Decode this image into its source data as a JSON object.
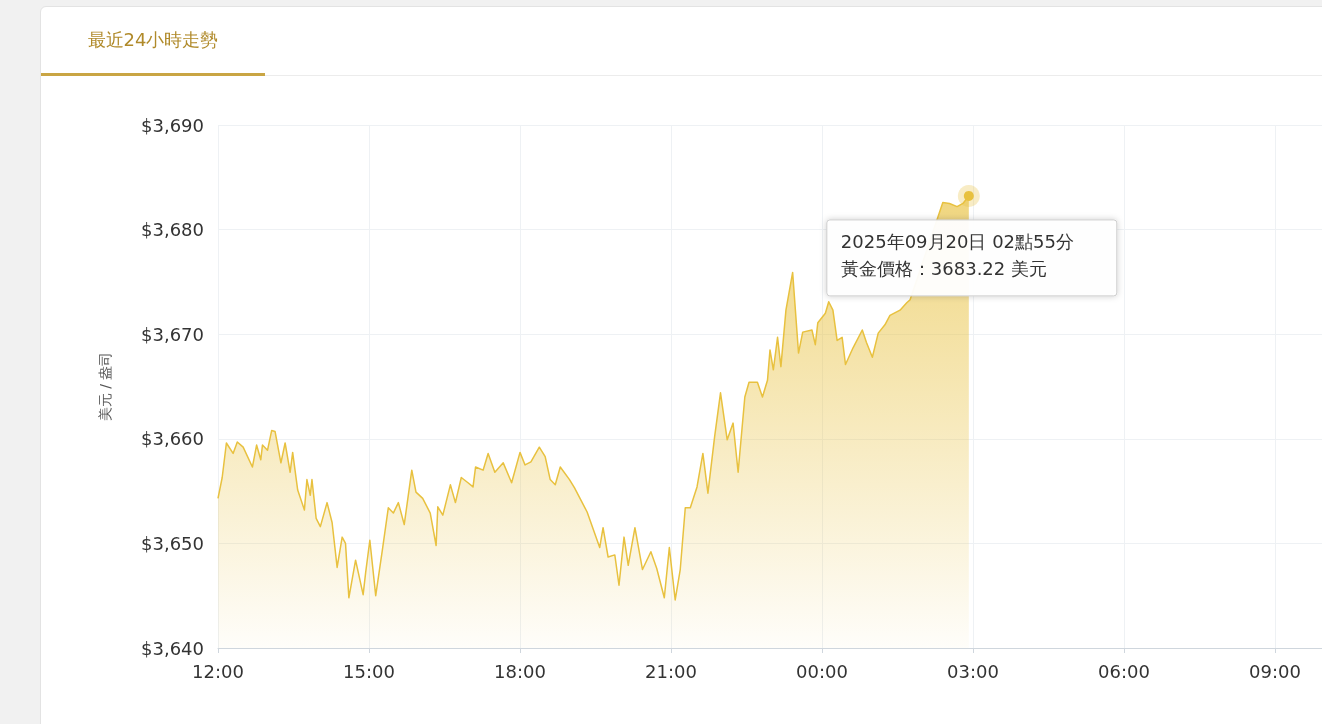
{
  "chart_data": {
    "type": "area",
    "title": "最近24小時走勢",
    "ylabel": "美元 / 盎司",
    "x": [
      "2025-09-19T12:00",
      "2025-09-19T12:05",
      "2025-09-19T12:10",
      "2025-09-19T12:18",
      "2025-09-19T12:23",
      "2025-09-19T12:30",
      "2025-09-19T12:41",
      "2025-09-19T12:46",
      "2025-09-19T12:51",
      "2025-09-19T12:53",
      "2025-09-19T12:59",
      "2025-09-19T13:04",
      "2025-09-19T13:08",
      "2025-09-19T13:15",
      "2025-09-19T13:20",
      "2025-09-19T13:26",
      "2025-09-19T13:29",
      "2025-09-19T13:35",
      "2025-09-19T13:43",
      "2025-09-19T13:46",
      "2025-09-19T13:50",
      "2025-09-19T13:52",
      "2025-09-19T13:57",
      "2025-09-19T14:02",
      "2025-09-19T14:10",
      "2025-09-19T14:16",
      "2025-09-19T14:22",
      "2025-09-19T14:28",
      "2025-09-19T14:32",
      "2025-09-19T14:36",
      "2025-09-19T14:44",
      "2025-09-19T14:53",
      "2025-09-19T14:56",
      "2025-09-19T15:01",
      "2025-09-19T15:08",
      "2025-09-19T15:16",
      "2025-09-19T15:23",
      "2025-09-19T15:29",
      "2025-09-19T15:35",
      "2025-09-19T15:42",
      "2025-09-19T15:51",
      "2025-09-19T15:56",
      "2025-09-19T16:04",
      "2025-09-19T16:13",
      "2025-09-19T16:20",
      "2025-09-19T16:22",
      "2025-09-19T16:28",
      "2025-09-19T16:37",
      "2025-09-19T16:43",
      "2025-09-19T16:50",
      "2025-09-19T16:58",
      "2025-09-19T17:04",
      "2025-09-19T17:07",
      "2025-09-19T17:16",
      "2025-09-19T17:22",
      "2025-09-19T17:30",
      "2025-09-19T17:40",
      "2025-09-19T17:50",
      "2025-09-19T18:00",
      "2025-09-19T18:06",
      "2025-09-19T18:13",
      "2025-09-19T18:23",
      "2025-09-19T18:30",
      "2025-09-19T18:36",
      "2025-09-19T18:42",
      "2025-09-19T18:48",
      "2025-09-19T18:59",
      "2025-09-19T19:05",
      "2025-09-19T19:20",
      "2025-09-19T19:35",
      "2025-09-19T19:39",
      "2025-09-19T19:45",
      "2025-09-19T19:53",
      "2025-09-19T19:58",
      "2025-09-19T20:04",
      "2025-09-19T20:09",
      "2025-09-19T20:17",
      "2025-09-19T20:26",
      "2025-09-19T20:36",
      "2025-09-19T20:43",
      "2025-09-19T20:52",
      "2025-09-19T20:58",
      "2025-09-19T21:05",
      "2025-09-19T21:11",
      "2025-09-19T21:17",
      "2025-09-19T21:23",
      "2025-09-19T21:31",
      "2025-09-19T21:38",
      "2025-09-19T21:44",
      "2025-09-19T21:52",
      "2025-09-19T21:59",
      "2025-09-19T22:07",
      "2025-09-19T22:14",
      "2025-09-19T22:20",
      "2025-09-19T22:28",
      "2025-09-19T22:33",
      "2025-09-19T22:43",
      "2025-09-19T22:49",
      "2025-09-19T22:55",
      "2025-09-19T22:58",
      "2025-09-19T23:02",
      "2025-09-19T23:07",
      "2025-09-19T23:11",
      "2025-09-19T23:17",
      "2025-09-19T23:25",
      "2025-09-19T23:32",
      "2025-09-19T23:37",
      "2025-09-19T23:48",
      "2025-09-19T23:52",
      "2025-09-19T23:55",
      "2025-09-20T00:04",
      "2025-09-20T00:08",
      "2025-09-20T00:13",
      "2025-09-20T00:18",
      "2025-09-20T00:24",
      "2025-09-20T00:28",
      "2025-09-20T00:37",
      "2025-09-20T00:48",
      "2025-09-20T00:53",
      "2025-09-20T01:00",
      "2025-09-20T01:07",
      "2025-09-20T01:15",
      "2025-09-20T01:21",
      "2025-09-20T01:33",
      "2025-09-20T01:41",
      "2025-09-20T01:45",
      "2025-09-20T02:24",
      "2025-09-20T02:32",
      "2025-09-20T02:41",
      "2025-09-20T02:48",
      "2025-09-20T02:55"
    ],
    "series": [
      {
        "color": "#e8c13f",
        "values": [
          3654.3,
          3656.3,
          3659.6,
          3658.6,
          3659.7,
          3659.2,
          3657.3,
          3659.4,
          3658.0,
          3659.4,
          3658.9,
          3660.8,
          3660.7,
          3657.7,
          3659.6,
          3656.8,
          3658.7,
          3655.1,
          3653.2,
          3656.1,
          3654.6,
          3656.1,
          3652.4,
          3651.6,
          3653.9,
          3652.0,
          3647.7,
          3650.6,
          3650.0,
          3644.8,
          3648.4,
          3645.1,
          3647.2,
          3650.3,
          3645.0,
          3649.4,
          3653.4,
          3652.9,
          3653.9,
          3651.8,
          3657.0,
          3654.9,
          3654.3,
          3652.9,
          3649.8,
          3653.5,
          3652.7,
          3655.6,
          3653.9,
          3656.3,
          3655.8,
          3655.4,
          3657.3,
          3657.0,
          3658.6,
          3656.8,
          3657.7,
          3655.8,
          3658.7,
          3657.5,
          3657.8,
          3659.2,
          3658.3,
          3656.1,
          3655.6,
          3657.3,
          3656.1,
          3655.3,
          3653.0,
          3649.6,
          3651.5,
          3648.7,
          3648.9,
          3646.0,
          3650.6,
          3647.9,
          3651.5,
          3647.5,
          3649.2,
          3647.6,
          3644.8,
          3649.6,
          3644.6,
          3647.5,
          3653.4,
          3653.4,
          3655.4,
          3658.6,
          3654.8,
          3660.2,
          3664.4,
          3659.9,
          3661.5,
          3656.8,
          3664.0,
          3665.4,
          3665.4,
          3664.0,
          3665.6,
          3668.5,
          3666.6,
          3669.7,
          3666.9,
          3672.3,
          3675.9,
          3668.2,
          3670.2,
          3670.4,
          3669.0,
          3671.1,
          3672.0,
          3673.1,
          3672.3,
          3669.4,
          3669.7,
          3667.1,
          3668.7,
          3670.4,
          3669.2,
          3667.8,
          3670.1,
          3670.9,
          3671.8,
          3672.3,
          3673.0,
          3673.3,
          3682.6,
          3682.5,
          3682.2,
          3682.5,
          3683.22
        ]
      }
    ],
    "xlim": [
      "2025-09-19T12:00",
      "2025-09-20T09:56"
    ],
    "xticks": [
      {
        "value": "2025-09-19T12:00",
        "label": "12:00"
      },
      {
        "value": "2025-09-19T15:00",
        "label": "15:00"
      },
      {
        "value": "2025-09-19T18:00",
        "label": "18:00"
      },
      {
        "value": "2025-09-19T21:00",
        "label": "21:00"
      },
      {
        "value": "2025-09-20T00:00",
        "label": "00:00"
      },
      {
        "value": "2025-09-20T03:00",
        "label": "03:00"
      },
      {
        "value": "2025-09-20T06:00",
        "label": "06:00"
      },
      {
        "value": "2025-09-20T09:00",
        "label": "09:00"
      }
    ],
    "ylim": [
      3640,
      3690
    ],
    "yticks": [
      {
        "value": 3640,
        "label": "$3,640"
      },
      {
        "value": 3650,
        "label": "$3,650"
      },
      {
        "value": 3660,
        "label": "$3,660"
      },
      {
        "value": 3670,
        "label": "$3,670"
      },
      {
        "value": 3680,
        "label": "$3,680"
      },
      {
        "value": 3690,
        "label": "$3,690"
      }
    ],
    "grid": true,
    "marker": "none",
    "line_style": "solid",
    "annotations": [
      {
        "text": "2025年09月20日 02點55分",
        "x": "2025-09-20T02:55",
        "y": 3683.22
      },
      "黃金價格：3683.22 美元"
    ]
  }
}
